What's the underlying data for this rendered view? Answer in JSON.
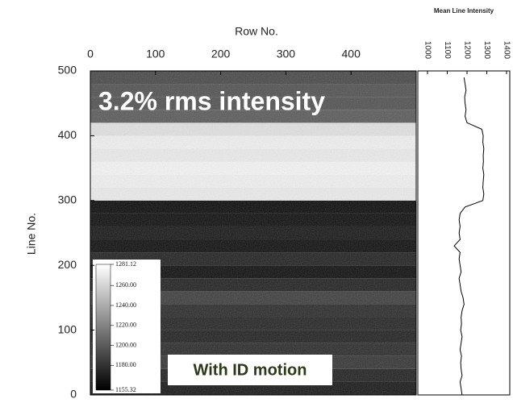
{
  "chart_data": [
    {
      "type": "heatmap",
      "xlabel": "Row No.",
      "ylabel": "Line No.",
      "xlim": [
        0,
        500
      ],
      "xticks": [
        0,
        100,
        200,
        300,
        400
      ],
      "ylim": [
        0,
        500
      ],
      "yticks": [
        0,
        100,
        200,
        300,
        400,
        500
      ],
      "band_height": 20,
      "y": [
        0,
        20,
        40,
        60,
        80,
        100,
        120,
        140,
        160,
        180,
        200,
        220,
        240,
        260,
        280,
        300,
        320,
        340,
        360,
        380,
        400,
        420,
        440,
        460,
        480
      ],
      "values": [
        1165,
        1170,
        1180,
        1175,
        1170,
        1172,
        1175,
        1185,
        1170,
        1160,
        1170,
        1160,
        1165,
        1160,
        1158,
        1275,
        1278,
        1280,
        1275,
        1278,
        1270,
        1200,
        1195,
        1195,
        1190
      ],
      "annotations": [
        "3.2% rms intensity",
        "With ID motion"
      ],
      "colorbar": {
        "lim": [
          1155.32,
          1281.12
        ],
        "ticks": [
          1281.12,
          {
            "value": 1260,
            "label": "1260.00"
          },
          {
            "value": 1240,
            "label": "1240.00"
          },
          {
            "value": 1220,
            "label": "1220.00"
          },
          {
            "value": 1200,
            "label": "1200.00"
          },
          {
            "value": 1180,
            "label": "1180.00"
          },
          1155.32
        ]
      }
    },
    {
      "type": "profile",
      "title": "Mean Line Intensity",
      "xlim": [
        1000,
        1400
      ],
      "xticks": [
        1000,
        1100,
        1200,
        1300,
        1400
      ],
      "ylim": [
        0,
        500
      ],
      "color": "#000000",
      "y": [
        0,
        10,
        20,
        30,
        40,
        50,
        60,
        70,
        80,
        90,
        100,
        110,
        120,
        130,
        140,
        150,
        160,
        170,
        180,
        190,
        200,
        210,
        220,
        230,
        240,
        250,
        260,
        270,
        280,
        290,
        300,
        310,
        320,
        330,
        340,
        350,
        360,
        370,
        380,
        390,
        400,
        410,
        420,
        430,
        440,
        450,
        460,
        470,
        480,
        490
      ],
      "values": [
        1175,
        1170,
        1165,
        1175,
        1170,
        1168,
        1172,
        1165,
        1170,
        1175,
        1168,
        1172,
        1170,
        1175,
        1185,
        1180,
        1170,
        1165,
        1160,
        1170,
        1165,
        1160,
        1165,
        1135,
        1165,
        1160,
        1165,
        1160,
        1165,
        1190,
        1280,
        1285,
        1280,
        1282,
        1285,
        1280,
        1283,
        1282,
        1285,
        1280,
        1282,
        1275,
        1200,
        1190,
        1195,
        1190,
        1188,
        1195,
        1190,
        1185
      ]
    }
  ]
}
